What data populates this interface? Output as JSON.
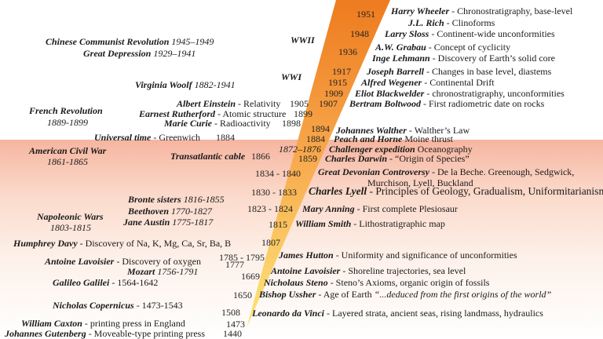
{
  "colors": {
    "wedge_top": "#ee7b1f",
    "wedge_mid": "#f7a64a",
    "wedge_bottom": "#fde67a",
    "band_top": "#f6b5a0",
    "band_bottom": "#ffffff"
  },
  "geology": [
    {
      "year": "1951",
      "name": "Harry Wheeler",
      "desc": " - Chronostratigraphy, base-level"
    },
    {
      "year": "",
      "name": "J.L. Rich",
      "desc": " - Clinoforms"
    },
    {
      "year": "1948",
      "name": "Larry Sloss",
      "desc": " - Continent-wide unconformities"
    },
    {
      "year": "1936",
      "name": "A.W. Grabau",
      "desc": " - Concept of cyclicity"
    },
    {
      "year": "",
      "name": "Inge Lehmann",
      "desc": " - Discovery of Earth’s solid core"
    },
    {
      "year": "1917",
      "name": "Joseph Barrell",
      "desc": " - Changes in base level, diastems"
    },
    {
      "year": "1915",
      "name": "Alfred Wegener",
      "desc": " - Continental Drift"
    },
    {
      "year": "1909",
      "name": "Eliot Blackwelder",
      "desc": " - chronostratigraphy, unconformities"
    },
    {
      "year": "1907",
      "name": "Bertram Boltwood",
      "desc": " - First radiometric date on rocks"
    },
    {
      "year": "1894",
      "name": "Johannes Walther",
      "desc": " - Walther’s Law"
    },
    {
      "year": "1884",
      "name": "Peach and Horne",
      "desc": " Moine thrust"
    },
    {
      "year": "1872–1876",
      "name": "Challenger expedition",
      "desc": " Oceanography"
    },
    {
      "year": "1859",
      "name": "Charles Darwin",
      "desc": " - “Origin of Species”"
    },
    {
      "year": "1834 - 1840",
      "name": "Great Devonian Controversy",
      "desc": " - De la Beche. Greenough, Sedgwick,",
      "desc2": "Murchison, Lyell, Buckland"
    },
    {
      "year": "1830 - 1833",
      "name": "Charles Lyell",
      "desc": " - Principles of Geology, Gradualism, Uniformitarianism"
    },
    {
      "year": "1823 - 1824",
      "name": "Mary Anning",
      "desc": " - First complete Plesiosaur"
    },
    {
      "year": "1815",
      "name": "William Smith",
      "desc": " - Lithostratigraphic map"
    },
    {
      "year": "1807",
      "name": "",
      "desc": ""
    },
    {
      "year": "1785 - 1795",
      "name": "James Hutton",
      "desc": " - Uniformity and significance of unconformities"
    },
    {
      "year": "1777",
      "name": "Antoine Lavoisier",
      "desc": " - Shoreline trajectories, sea level"
    },
    {
      "year": "1669",
      "name": "Nicholaus Steno",
      "desc": " - Steno’s Axioms, organic origin of fossils"
    },
    {
      "year": "1650",
      "name": "Bishop Ussher",
      "desc": " - Age of Earth ",
      "quote": "“...deduced from the first origins of the world”"
    },
    {
      "year": "1508",
      "name": "Leonardo da Vinci",
      "desc": " - Layered strata, ancient seas, rising landmass, hydraulics"
    },
    {
      "year": "1473",
      "name": "",
      "desc": ""
    },
    {
      "year": "1440",
      "name": "",
      "desc": ""
    }
  ],
  "context": {
    "chinese": {
      "name": "Chinese Communist Revolution",
      "years": "1945–1949"
    },
    "depression": {
      "name": "Great Depression",
      "years": "1929–1941"
    },
    "ww2": "WWII",
    "ww1": "WWI",
    "woolf": {
      "name": "Virginia Woolf",
      "years": "1882-1941"
    },
    "einstein": {
      "name": "Albert Einstein",
      "desc": " - Relativity",
      "year": "1905"
    },
    "rutherford": {
      "name": "Earnest Rutherford",
      "desc": " - Atomic structure",
      "year": "1899"
    },
    "curie": {
      "name": "Marie Curie",
      "desc": " - Radioactivity",
      "year": "1898"
    },
    "french": {
      "name": "French Revolution",
      "years": "1889-1899"
    },
    "utime": {
      "name": "Universal time",
      "desc": " - Greenwich",
      "year": "1884"
    },
    "civilwar": {
      "name": "American Civil War",
      "years": "1861-1865"
    },
    "cable": {
      "name": "Transatlantic cable",
      "year": "1866"
    },
    "bronte": {
      "name": "Bronte sisters",
      "years": "1816-1855"
    },
    "beethoven": {
      "name": "Beethoven",
      "years": "1770-1827"
    },
    "austen": {
      "name": "Jane Austin",
      "years": "1775-1817"
    },
    "napoleonic": {
      "name": "Napoleonic Wars",
      "years": "1803-1815"
    },
    "davy": {
      "name": "Humphrey Davy",
      "desc": " - Discovery of Na, K, Mg, Ca, Sr, Ba, B"
    },
    "lavoisier": {
      "name": "Antoine Lavoisier",
      "desc": " - Discovery of oxygen"
    },
    "mozart": {
      "name": "Mozart",
      "years": "1756-1791"
    },
    "galileo": {
      "name": "Galileo Galilei",
      "desc": " - 1564-1642"
    },
    "copernicus": {
      "name": "Nicholas Copernicus",
      "desc": " - 1473-1543"
    },
    "caxton": {
      "name": "William Caxton",
      "desc": " - printing press in England"
    },
    "gutenberg": {
      "name": "Johannes Gutenberg",
      "desc": " - Moveable-type printing press"
    }
  }
}
